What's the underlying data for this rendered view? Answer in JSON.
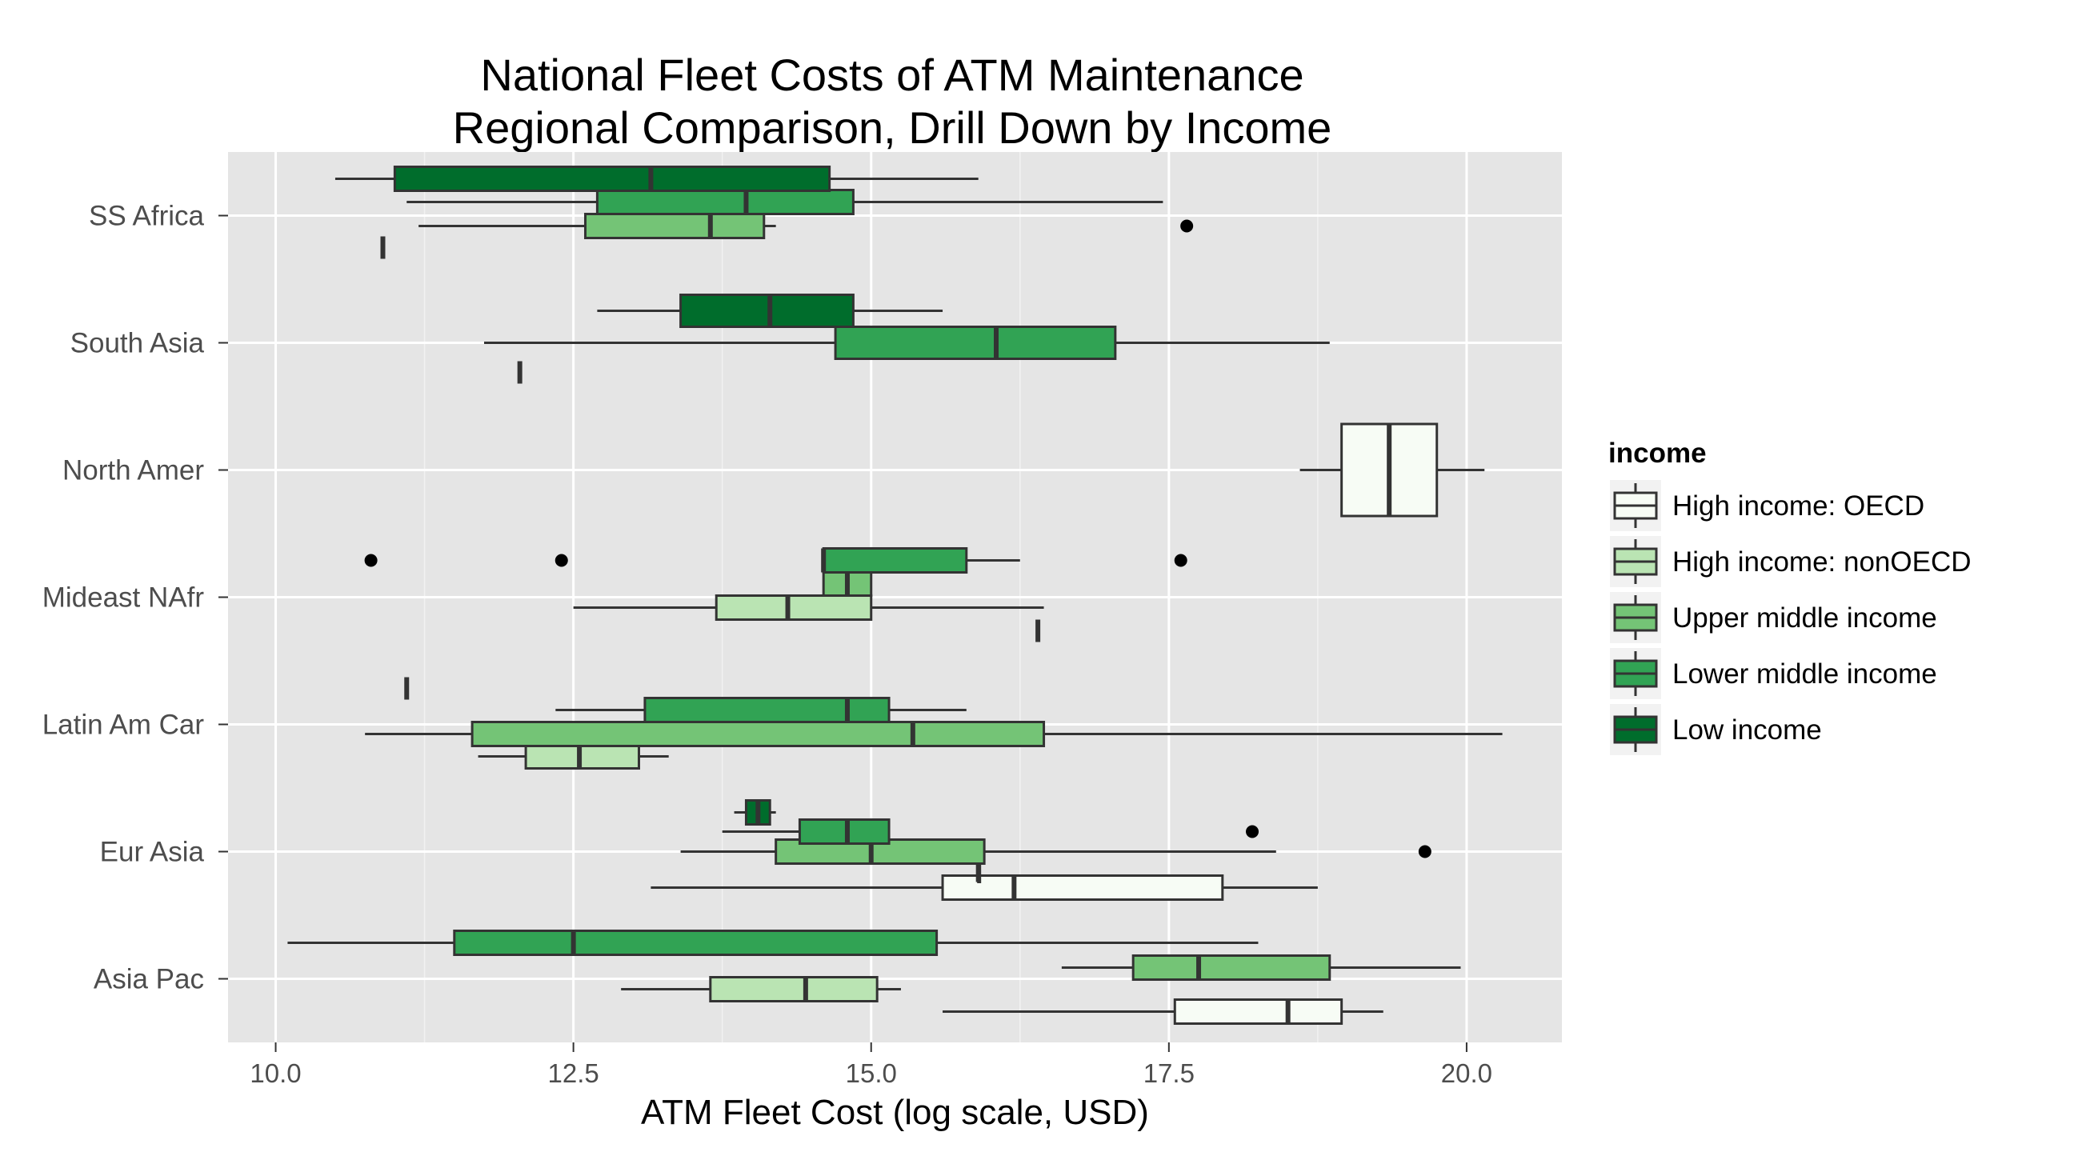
{
  "chart_data": {
    "type": "boxplot",
    "orientation": "horizontal",
    "title_lines": [
      "National Fleet Costs of ATM Maintenance",
      "Regional Comparison, Drill Down by Income"
    ],
    "xlabel": "ATM Fleet Cost (log scale, USD)",
    "ylabel": "",
    "xlim": [
      9.6,
      20.8
    ],
    "x_ticks": [
      10.0,
      12.5,
      15.0,
      17.5,
      20.0
    ],
    "x_tick_labels": [
      "10.0",
      "12.5",
      "15.0",
      "17.5",
      "20.0"
    ],
    "grid": true,
    "legend_position": "right",
    "legend": {
      "title": "income",
      "items": [
        {
          "key": "high_oecd",
          "label": "High income: OECD",
          "color": "#F7FCF5"
        },
        {
          "key": "high_non",
          "label": "High income: nonOECD",
          "color": "#BAE4B3"
        },
        {
          "key": "upper",
          "label": "Upper middle income",
          "color": "#74C476"
        },
        {
          "key": "lower",
          "label": "Lower middle income",
          "color": "#31A354"
        },
        {
          "key": "low",
          "label": "Low income",
          "color": "#006D2C"
        }
      ]
    },
    "categories": [
      "SS Africa",
      "South Asia",
      "North Amer",
      "Mideast NAfr",
      "Latin Am Car",
      "Eur Asia",
      "Asia Pac"
    ],
    "series": [
      {
        "key": "high_oecd",
        "boxes": [
          {
            "category": "North Amer",
            "whisker_low": 18.6,
            "q1": 18.95,
            "median": 19.35,
            "q3": 19.75,
            "whisker_high": 20.15
          },
          {
            "category": "Eur Asia",
            "whisker_low": 13.15,
            "q1": 15.6,
            "median": 16.2,
            "q3": 17.95,
            "whisker_high": 18.75
          },
          {
            "category": "Asia Pac",
            "whisker_low": 15.6,
            "q1": 17.55,
            "median": 18.5,
            "q3": 18.95,
            "whisker_high": 19.3
          }
        ]
      },
      {
        "key": "high_non",
        "boxes": [
          {
            "category": "Mideast NAfr",
            "whisker_low": 12.5,
            "q1": 13.7,
            "median": 14.3,
            "q3": 15.0,
            "whisker_high": 16.45
          },
          {
            "category": "Latin Am Car",
            "whisker_low": 11.7,
            "q1": 12.1,
            "median": 12.55,
            "q3": 13.05,
            "whisker_high": 13.3
          },
          {
            "category": "Eur Asia",
            "whisker_low": 15.9,
            "q1": 15.9,
            "median": 15.9,
            "q3": 15.9,
            "whisker_high": 15.9
          },
          {
            "category": "Asia Pac",
            "whisker_low": 12.9,
            "q1": 13.65,
            "median": 14.45,
            "q3": 15.05,
            "whisker_high": 15.25
          }
        ]
      },
      {
        "key": "upper",
        "boxes": [
          {
            "category": "SS Africa",
            "whisker_low": 11.2,
            "q1": 12.6,
            "median": 13.65,
            "q3": 14.1,
            "whisker_high": 14.2,
            "outliers": [
              17.65
            ]
          },
          {
            "category": "Mideast NAfr",
            "whisker_low": 14.6,
            "q1": 14.6,
            "median": 14.8,
            "q3": 15.0,
            "whisker_high": 15.0
          },
          {
            "category": "Latin Am Car",
            "whisker_low": 10.75,
            "q1": 11.65,
            "median": 15.35,
            "q3": 16.45,
            "whisker_high": 20.3
          },
          {
            "category": "Eur Asia",
            "whisker_low": 13.4,
            "q1": 14.2,
            "median": 15.0,
            "q3": 15.95,
            "whisker_high": 18.4,
            "outliers": [
              19.65
            ]
          }
        ]
      },
      {
        "key": "lower",
        "boxes": [
          {
            "category": "SS Africa",
            "whisker_low": 11.1,
            "q1": 12.7,
            "median": 13.95,
            "q3": 14.85,
            "whisker_high": 17.45
          },
          {
            "category": "South Asia",
            "whisker_low": 11.75,
            "q1": 14.7,
            "median": 16.05,
            "q3": 17.05,
            "whisker_high": 18.85
          },
          {
            "category": "Mideast NAfr",
            "whisker_low": 14.6,
            "q1": 14.6,
            "median": 14.6,
            "q3": 15.8,
            "whisker_high": 16.25,
            "outliers": [
              10.8,
              12.4,
              17.6
            ]
          },
          {
            "category": "Latin Am Car",
            "whisker_low": 12.35,
            "q1": 13.1,
            "median": 14.8,
            "q3": 15.15,
            "whisker_high": 15.8
          },
          {
            "category": "Eur Asia",
            "whisker_low": 13.75,
            "q1": 14.4,
            "median": 14.8,
            "q3": 15.15,
            "whisker_high": 15.15,
            "outliers": [
              18.2
            ]
          },
          {
            "category": "Asia Pac",
            "whisker_low": 10.1,
            "q1": 11.5,
            "median": 12.5,
            "q3": 15.55,
            "whisker_high": 18.25
          }
        ]
      },
      {
        "key": "upper",
        "slot": "lower2",
        "boxes": [
          {
            "category": "Asia Pac",
            "whisker_low": 16.6,
            "q1": 17.2,
            "median": 17.75,
            "q3": 18.85,
            "whisker_high": 19.95
          }
        ]
      },
      {
        "key": "low",
        "boxes": [
          {
            "category": "SS Africa",
            "whisker_low": 10.5,
            "q1": 11.0,
            "median": 13.15,
            "q3": 14.65,
            "whisker_high": 15.9
          },
          {
            "category": "South Asia",
            "whisker_low": 12.7,
            "q1": 13.4,
            "median": 14.15,
            "q3": 14.85,
            "whisker_high": 15.6
          },
          {
            "category": "Eur Asia",
            "whisker_low": 13.85,
            "q1": 13.95,
            "median": 14.05,
            "q3": 14.15,
            "whisker_high": 14.2
          }
        ]
      },
      {
        "key": "single",
        "boxes": [
          {
            "category": "SS Africa",
            "value": 10.9
          },
          {
            "category": "South Asia",
            "value": 12.05
          },
          {
            "category": "Mideast NAfr",
            "value": 16.4
          },
          {
            "category": "Latin Am Car",
            "value": 11.1
          }
        ]
      }
    ]
  }
}
